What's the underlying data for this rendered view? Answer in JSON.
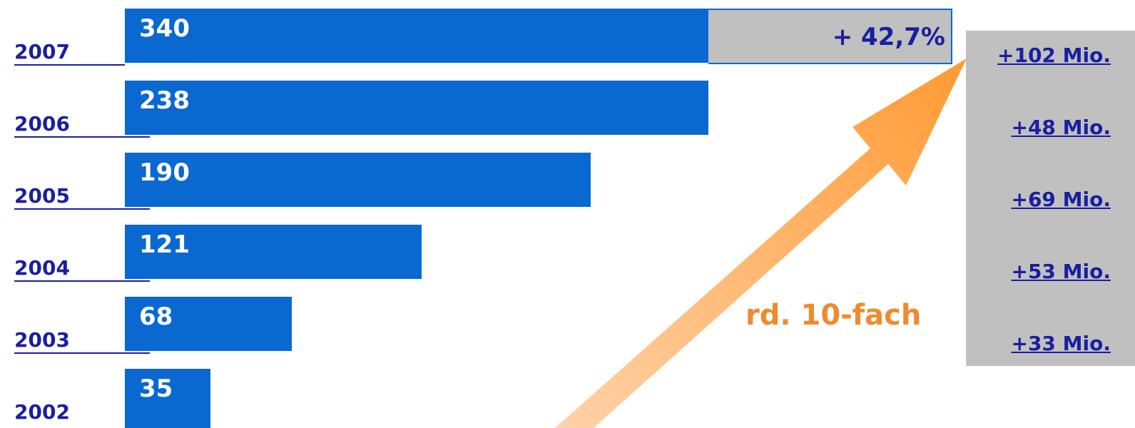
{
  "chart_data": {
    "type": "bar",
    "orientation": "horizontal",
    "categories": [
      "2007",
      "2006",
      "2005",
      "2004",
      "2003",
      "2002"
    ],
    "values": [
      340,
      238,
      190,
      121,
      68,
      35
    ],
    "growth_label": "+ 42,7%",
    "annual_increase": [
      "+102 Mio.",
      "+48 Mio.",
      "+69 Mio.",
      "+53 Mio.",
      "+33 Mio."
    ],
    "factor_label": "rd. 10-fach",
    "colors": {
      "bar": "#0a68d1",
      "growth_box": "#c0c0c0",
      "year_text": "#1a1f9e",
      "factor_text": "#f08a30",
      "arrow_start": "#ffd2a8",
      "arrow_end": "#ff9a33"
    }
  }
}
